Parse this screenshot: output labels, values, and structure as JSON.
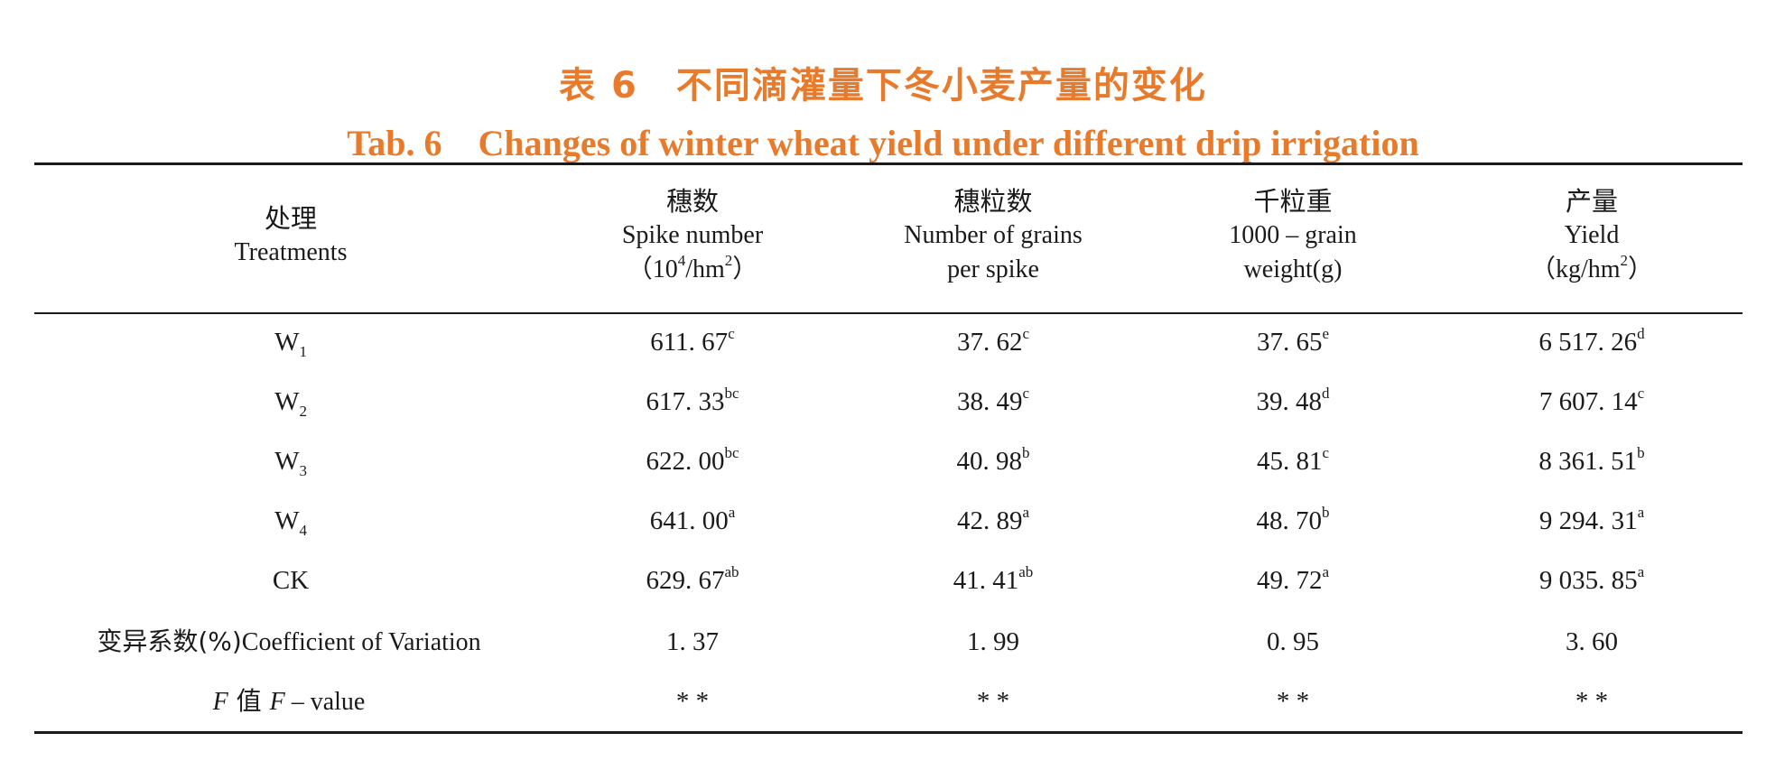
{
  "title": {
    "cn": "表 6　不同滴灌量下冬小麦产量的变化",
    "en": "Tab. 6　Changes of winter wheat yield under different drip irrigation"
  },
  "headers": [
    {
      "cn": "处理",
      "en1": "Treatments",
      "en2": "",
      "unit_pre": "",
      "unit_sup": "",
      "unit_mid": "",
      "unit_sup2": "",
      "unit_post": ""
    },
    {
      "cn": "穗数",
      "en1": "Spike number",
      "unit_pre": "（10",
      "unit_sup": "4",
      "unit_mid": "/hm",
      "unit_sup2": "2",
      "unit_post": "）"
    },
    {
      "cn": "穗粒数",
      "en1": "Number of grains",
      "en2": "per spike"
    },
    {
      "cn": "千粒重",
      "en1": "1000 – grain",
      "en2": "weight(g)"
    },
    {
      "cn": "产量",
      "en1": "Yield",
      "unit_pre": "（kg/hm",
      "unit_sup": "2",
      "unit_post": "）"
    }
  ],
  "rows": [
    {
      "label_main": "W",
      "label_sub": "1",
      "cells": [
        {
          "v": "611. 67",
          "s": "c"
        },
        {
          "v": "37. 62",
          "s": "c"
        },
        {
          "v": "37. 65",
          "s": "e"
        },
        {
          "v": "6 517. 26",
          "s": "d"
        }
      ]
    },
    {
      "label_main": "W",
      "label_sub": "2",
      "cells": [
        {
          "v": "617. 33",
          "s": "bc"
        },
        {
          "v": "38. 49",
          "s": "c"
        },
        {
          "v": "39. 48",
          "s": "d"
        },
        {
          "v": "7 607. 14",
          "s": "c"
        }
      ]
    },
    {
      "label_main": "W",
      "label_sub": "3",
      "cells": [
        {
          "v": "622. 00",
          "s": "bc"
        },
        {
          "v": "40. 98",
          "s": "b"
        },
        {
          "v": "45. 81",
          "s": "c"
        },
        {
          "v": "8 361. 51",
          "s": "b"
        }
      ]
    },
    {
      "label_main": "W",
      "label_sub": "4",
      "cells": [
        {
          "v": "641. 00",
          "s": "a"
        },
        {
          "v": "42. 89",
          "s": "a"
        },
        {
          "v": "48. 70",
          "s": "b"
        },
        {
          "v": "9 294. 31",
          "s": "a"
        }
      ]
    },
    {
      "label_main": "CK",
      "label_sub": "",
      "cells": [
        {
          "v": "629. 67",
          "s": "ab"
        },
        {
          "v": "41. 41",
          "s": "ab"
        },
        {
          "v": "49. 72",
          "s": "a"
        },
        {
          "v": "9 035. 85",
          "s": "a"
        }
      ]
    }
  ],
  "cv_row": {
    "label_cn": "变异系数(%)",
    "label_en": "Coefficient of Variation",
    "cells": [
      "1. 37",
      "1. 99",
      "0. 95",
      "3. 60"
    ]
  },
  "f_row": {
    "label_f1": "F",
    "label_cn": " 值 ",
    "label_f2": "F",
    "label_en": " – value",
    "cells": [
      "* *",
      "* *",
      "* *",
      "* *"
    ]
  }
}
